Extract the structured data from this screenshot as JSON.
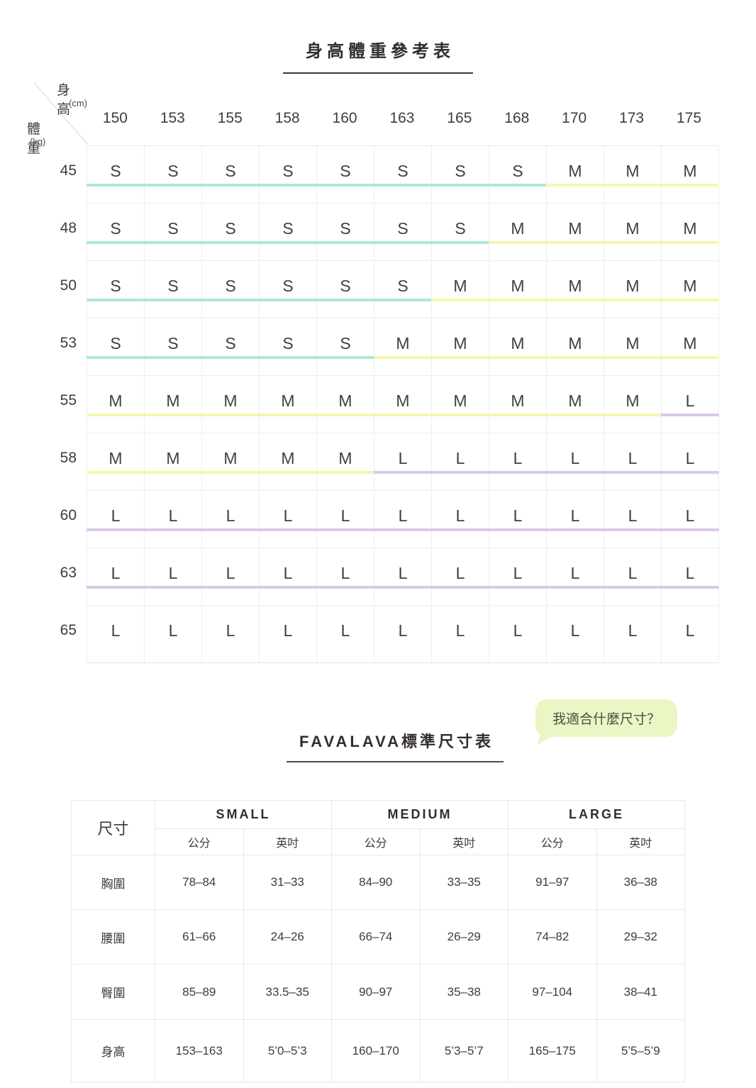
{
  "height_weight_chart": {
    "title": "身高體重參考表",
    "corner": {
      "col_axis": "身高",
      "col_unit": "(cm)",
      "row_axis": "體重",
      "row_unit": "(kg)"
    },
    "heights": [
      "150",
      "153",
      "155",
      "158",
      "160",
      "163",
      "165",
      "168",
      "170",
      "173",
      "175"
    ],
    "accent_colors": {
      "teal": "#a9ead5",
      "yellow": "#f6f6ad",
      "purple": "#dac9e5"
    },
    "rows": [
      {
        "weight": "45",
        "sizes": [
          "S",
          "S",
          "S",
          "S",
          "S",
          "S",
          "S",
          "S",
          "M",
          "M",
          "M"
        ],
        "accents": [
          "teal",
          "teal",
          "teal",
          "teal",
          "teal",
          "teal",
          "teal",
          "teal",
          "yellow",
          "yellow",
          "yellow"
        ]
      },
      {
        "weight": "48",
        "sizes": [
          "S",
          "S",
          "S",
          "S",
          "S",
          "S",
          "S",
          "M",
          "M",
          "M",
          "M"
        ],
        "accents": [
          "teal",
          "teal",
          "teal",
          "teal",
          "teal",
          "teal",
          "teal",
          "yellow",
          "yellow",
          "yellow",
          "yellow"
        ]
      },
      {
        "weight": "50",
        "sizes": [
          "S",
          "S",
          "S",
          "S",
          "S",
          "S",
          "M",
          "M",
          "M",
          "M",
          "M"
        ],
        "accents": [
          "teal",
          "teal",
          "teal",
          "teal",
          "teal",
          "teal",
          "yellow",
          "yellow",
          "yellow",
          "yellow",
          "yellow"
        ]
      },
      {
        "weight": "53",
        "sizes": [
          "S",
          "S",
          "S",
          "S",
          "S",
          "M",
          "M",
          "M",
          "M",
          "M",
          "M"
        ],
        "accents": [
          "teal",
          "teal",
          "teal",
          "teal",
          "teal",
          "yellow",
          "yellow",
          "yellow",
          "yellow",
          "yellow",
          "yellow"
        ]
      },
      {
        "weight": "55",
        "sizes": [
          "M",
          "M",
          "M",
          "M",
          "M",
          "M",
          "M",
          "M",
          "M",
          "M",
          "L"
        ],
        "accents": [
          "yellow",
          "yellow",
          "yellow",
          "yellow",
          "yellow",
          "yellow",
          "yellow",
          "yellow",
          "yellow",
          "yellow",
          "purple"
        ]
      },
      {
        "weight": "58",
        "sizes": [
          "M",
          "M",
          "M",
          "M",
          "M",
          "L",
          "L",
          "L",
          "L",
          "L",
          "L"
        ],
        "accents": [
          "yellow",
          "yellow",
          "yellow",
          "yellow",
          "yellow",
          "purple",
          "purple",
          "purple",
          "purple",
          "purple",
          "purple"
        ]
      },
      {
        "weight": "60",
        "sizes": [
          "L",
          "L",
          "L",
          "L",
          "L",
          "L",
          "L",
          "L",
          "L",
          "L",
          "L"
        ],
        "accents": [
          "purple",
          "purple",
          "purple",
          "purple",
          "purple",
          "purple",
          "purple",
          "purple",
          "purple",
          "purple",
          "purple"
        ]
      },
      {
        "weight": "63",
        "sizes": [
          "L",
          "L",
          "L",
          "L",
          "L",
          "L",
          "L",
          "L",
          "L",
          "L",
          "L"
        ],
        "accents": [
          "purple",
          "purple",
          "purple",
          "purple",
          "purple",
          "purple",
          "purple",
          "purple",
          "purple",
          "purple",
          "purple"
        ]
      },
      {
        "weight": "65",
        "sizes": [
          "L",
          "L",
          "L",
          "L",
          "L",
          "L",
          "L",
          "L",
          "L",
          "L",
          "L"
        ],
        "accents": [
          null,
          null,
          null,
          null,
          null,
          null,
          null,
          null,
          null,
          null,
          null
        ]
      }
    ]
  },
  "bubble": {
    "text": "我適合什麼尺寸？",
    "bg": "#eaf6c4"
  },
  "standard_size_table": {
    "title": "FAVALAVA標準尺寸表",
    "corner_label": "尺寸",
    "size_groups": [
      "SMALL",
      "MEDIUM",
      "LARGE"
    ],
    "unit_headers": [
      "公分",
      "英吋"
    ],
    "rows": [
      {
        "label": "胸圍",
        "values": [
          "78–84",
          "31–33",
          "84–90",
          "33–35",
          "91–97",
          "36–38"
        ]
      },
      {
        "label": "腰圍",
        "values": [
          "61–66",
          "24–26",
          "66–74",
          "26–29",
          "74–82",
          "29–32"
        ]
      },
      {
        "label": "臀圍",
        "values": [
          "85–89",
          "33.5–35",
          "90–97",
          "35–38",
          "97–104",
          "38–41"
        ]
      },
      {
        "label": "身高",
        "values": [
          "153–163",
          "5’0–5’3",
          "160–170",
          "5’3–5’7",
          "165–175",
          "5’5–5’9"
        ]
      }
    ]
  }
}
